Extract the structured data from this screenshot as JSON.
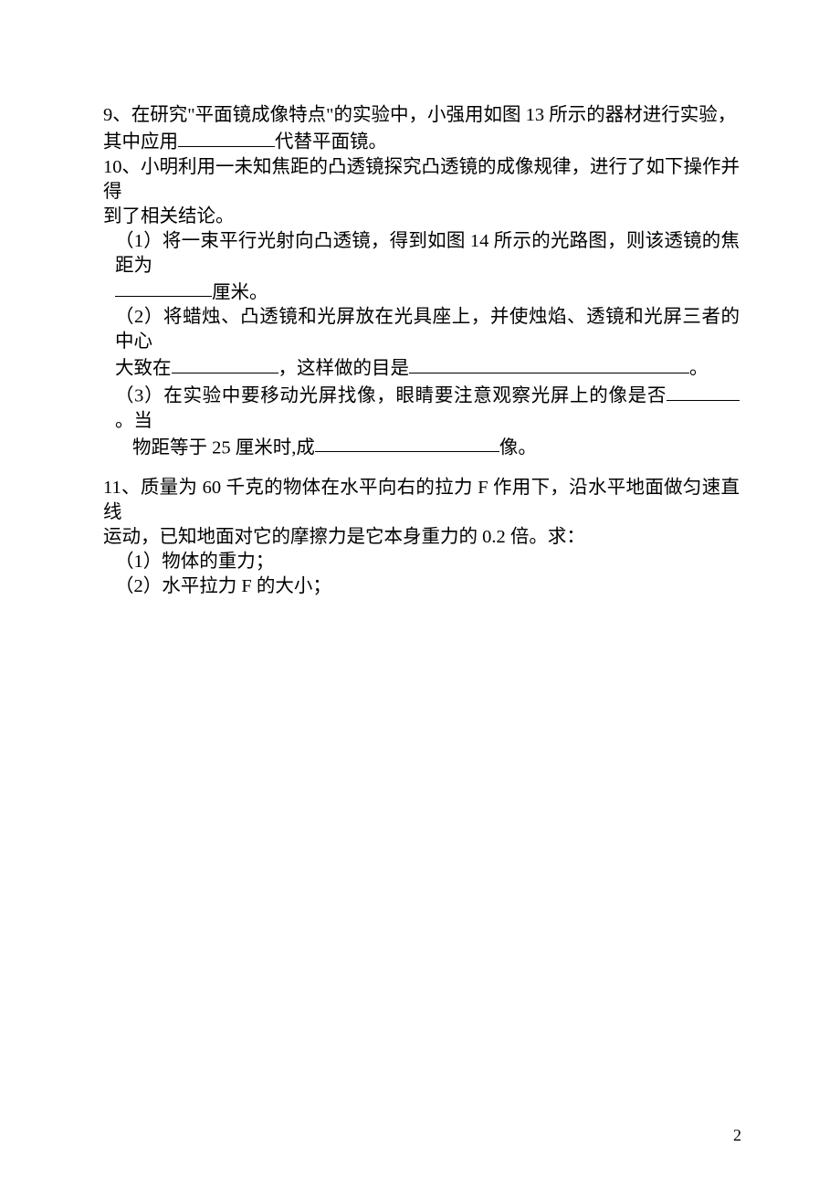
{
  "q9": {
    "num_label": "9、",
    "line1a": "在研究\"平面镜成像特点\"的实验中，小强用如图 13 所示的器材进行实验，",
    "line2a": "其中应用",
    "line2b": "代替平面镜。"
  },
  "q10": {
    "num_label": "10、",
    "intro1": "小明利用一未知焦距的凸透镜探究凸透镜的成像规律，进行了如下操作并得",
    "intro2": "到了相关结论。",
    "p1_lead": "（1）将一束平行光射向凸透镜，得到如图 14 所示的光路图，则该透镜的焦距为",
    "p1_tail": "厘米。",
    "p2_a": "（2）将蜡烛、凸透镜和光屏放在光具座上，并使烛焰、透镜和光屏三者的中心",
    "p2_b1": "大致在",
    "p2_b2": "，这样做的目是",
    "p2_b3": "。",
    "p3_a1": "（3）在实验中要移动光屏找像，眼睛要注意观察光屏上的像是否",
    "p3_a2": "。当",
    "p3_b1": "物距等于 25 厘米时,成",
    "p3_b2": "像。"
  },
  "q11": {
    "num_label": "11、",
    "l1": "质量为 60 千克的物体在水平向右的拉力 F 作用下，沿水平地面做匀速直线",
    "l2": "运动，已知地面对它的摩擦力是它本身重力的 0.2 倍。求：",
    "p1": "（1）物体的重力；",
    "p2": "（2）水平拉力 F 的大小；"
  },
  "page_number": "2",
  "blank_widths": {
    "q9": 106,
    "q10_1": 106,
    "q10_2a": 117,
    "q10_2b": 307,
    "q10_3a": 80,
    "q10_3b": 202
  }
}
